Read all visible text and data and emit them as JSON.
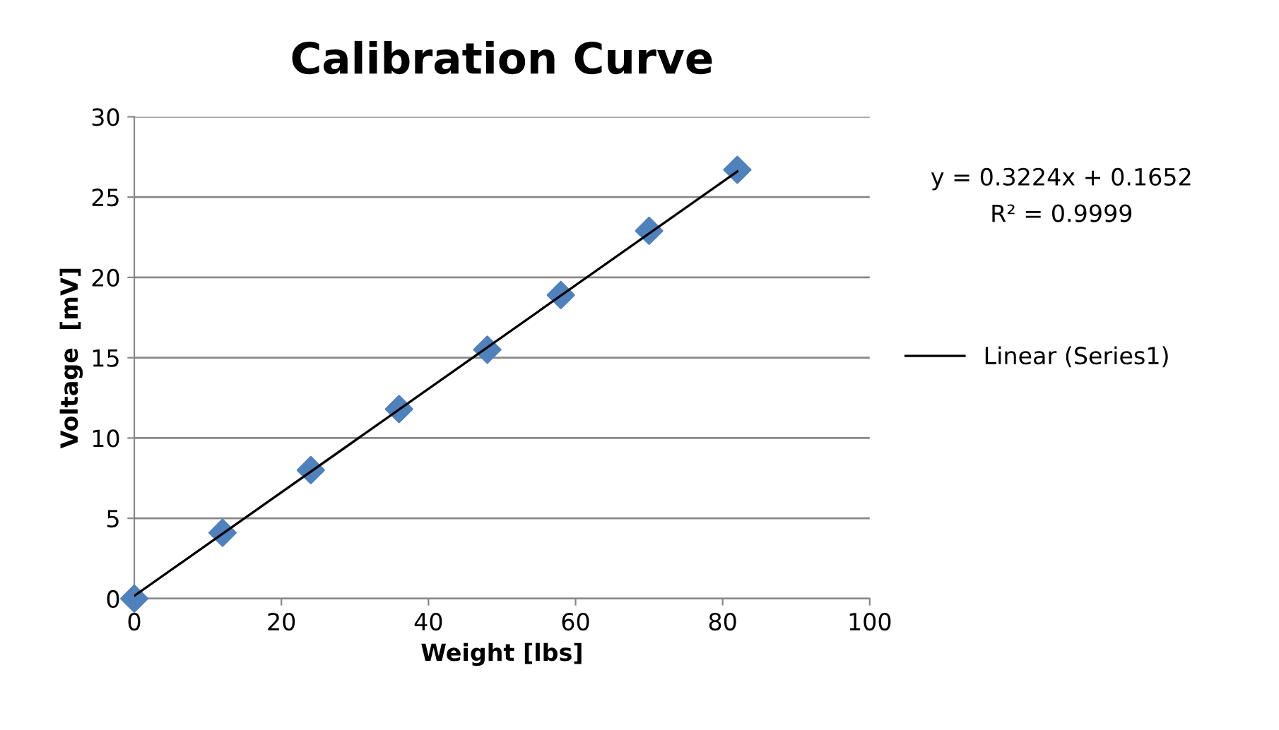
{
  "chart_data": {
    "type": "scatter",
    "title": "Calibration Curve",
    "xlabel": "Weight [lbs]",
    "ylabel": "Voltage  [mV]",
    "annotations": [
      "y = 0.3224x + 0.1652",
      "R² = 0.9999"
    ],
    "x": [
      0,
      12,
      24,
      36,
      48,
      58,
      70,
      82
    ],
    "series": [
      {
        "color": "#4f81bd",
        "marker": "diamond",
        "values": [
          0,
          4.1,
          8.0,
          11.8,
          15.5,
          18.9,
          22.9,
          26.7
        ]
      },
      {
        "type": "line",
        "name": "Linear (Series1)",
        "color": "#000000",
        "marker": "none",
        "line_style": "solid",
        "x": [
          0,
          82
        ],
        "values": [
          0.17,
          26.6
        ]
      }
    ],
    "xlim": [
      0,
      100
    ],
    "xticks": [
      0,
      20,
      40,
      60,
      80,
      100
    ],
    "ylim": [
      0,
      30
    ],
    "yticks": [
      0,
      5,
      10,
      15,
      20,
      25,
      30
    ],
    "grid": "y",
    "legend": "right"
  }
}
